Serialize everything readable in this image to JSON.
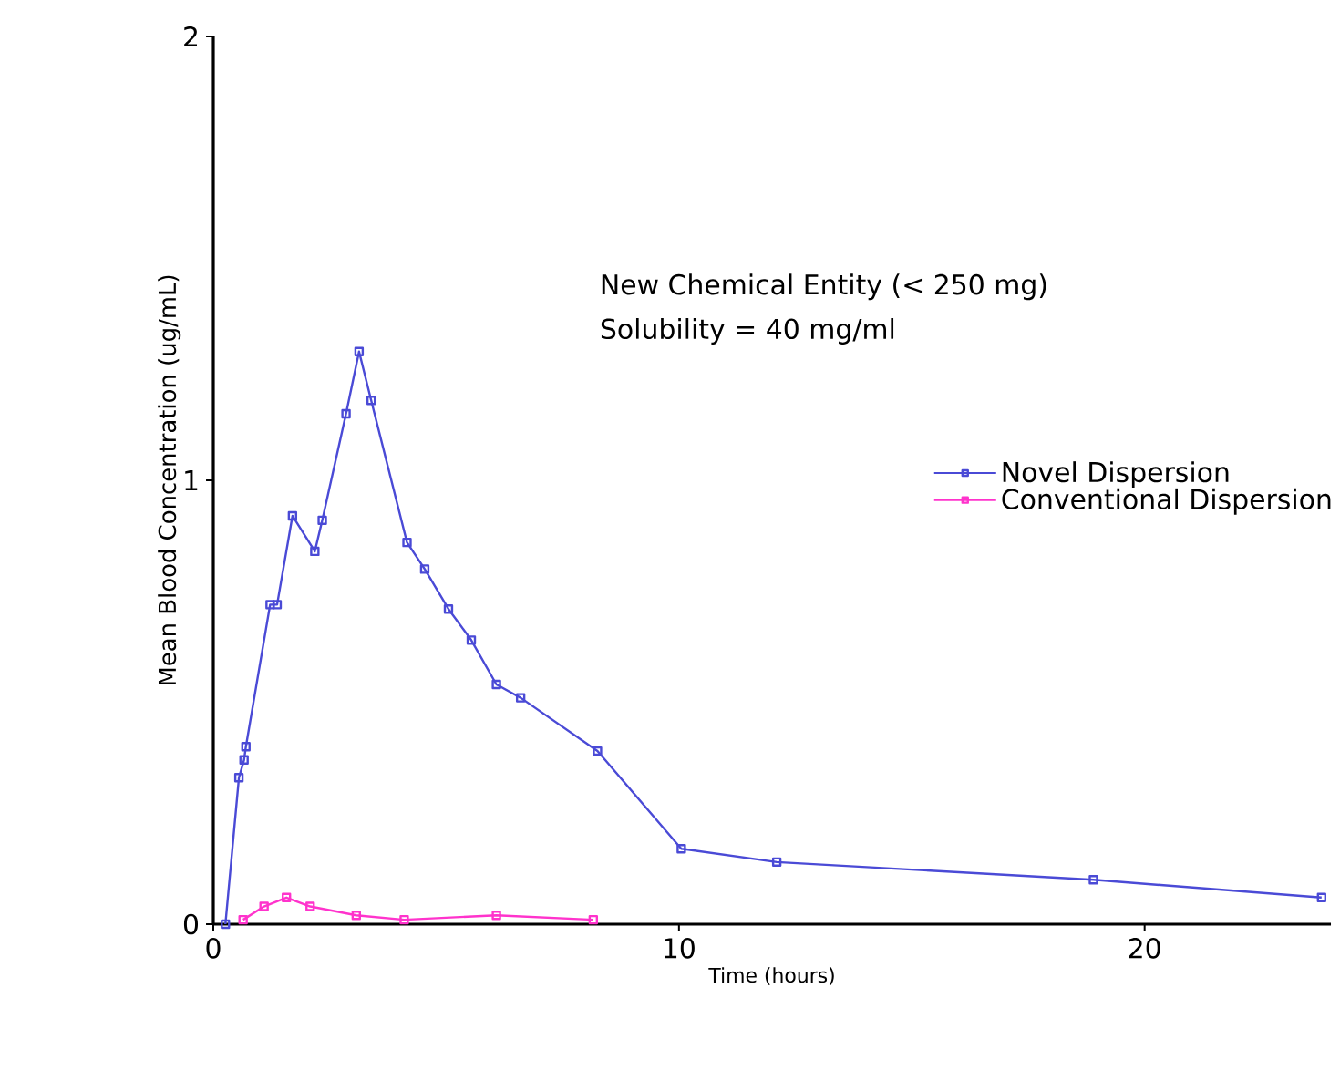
{
  "chart_data": {
    "type": "line",
    "xlabel": "Time (hours)",
    "ylabel": "Mean Blood Concentration (ug/mL)",
    "xlim": [
      0,
      24
    ],
    "ylim": [
      0,
      2
    ],
    "xticks": [
      0,
      10,
      20
    ],
    "yticks": [
      0,
      1,
      2
    ],
    "annotations": [
      "New Chemical Entity (< 250 mg)",
      "Solubility = 40 mg/ml"
    ],
    "legend": "right",
    "marker": "square",
    "line_style": "solid",
    "grid": false,
    "series": [
      {
        "name": "Novel Dispersion",
        "color": "#4a4ad6",
        "x": [
          0.26,
          0.55,
          0.66,
          0.7,
          1.22,
          1.37,
          1.7,
          2.18,
          2.34,
          2.85,
          3.13,
          3.39,
          4.16,
          4.54,
          5.05,
          5.54,
          6.08,
          6.6,
          8.25,
          10.05,
          12.1,
          18.9,
          23.8
        ],
        "values": [
          0,
          0.33,
          0.37,
          0.4,
          0.72,
          0.72,
          0.92,
          0.84,
          0.91,
          1.15,
          1.29,
          1.18,
          0.86,
          0.8,
          0.71,
          0.64,
          0.54,
          0.51,
          0.39,
          0.17,
          0.14,
          0.1,
          0.06
        ]
      },
      {
        "name": "Conventional Dispersion",
        "color": "#ff33cc",
        "x": [
          0.64,
          1.09,
          1.57,
          2.08,
          3.07,
          4.1,
          6.08,
          8.16
        ],
        "values": [
          0.01,
          0.04,
          0.06,
          0.04,
          0.02,
          0.01,
          0.02,
          0.01
        ]
      }
    ]
  }
}
